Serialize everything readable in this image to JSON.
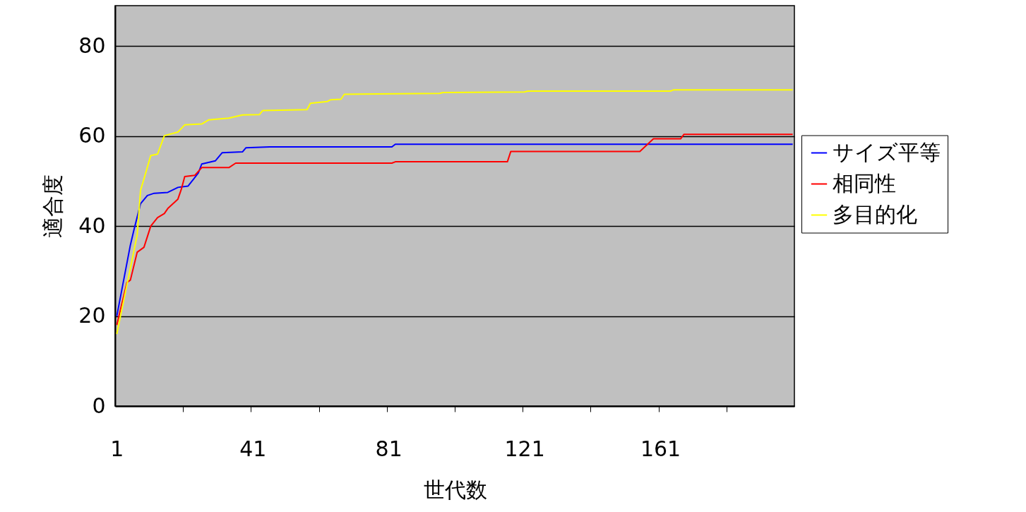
{
  "chart_data": {
    "type": "line",
    "xlabel": "世代数",
    "ylabel": "適合度",
    "xlim": [
      0.5,
      200.5
    ],
    "ylim": [
      0,
      89
    ],
    "xticks": [
      1,
      {
        "value": 20.5,
        "label": null
      },
      {
        "value": 40.5,
        "label": null
      },
      41,
      {
        "value": 60.5,
        "label": null
      },
      {
        "value": 80.5,
        "label": null
      },
      81,
      {
        "value": 100.5,
        "label": null
      },
      {
        "value": 120.5,
        "label": null
      },
      121,
      {
        "value": 140.5,
        "label": null
      },
      {
        "value": 160.5,
        "label": null
      },
      161,
      {
        "value": 180.5,
        "label": null
      }
    ],
    "yticks": [
      0,
      20,
      40,
      60,
      80
    ],
    "grid": "y",
    "legend": "right",
    "series": [
      {
        "name": "サイズ平等",
        "color": "#0000ff",
        "x": [
          1,
          5,
          6,
          8,
          10,
          12,
          16,
          19,
          22,
          25,
          26,
          30,
          32,
          38,
          39,
          46,
          82,
          83,
          200
        ],
        "values": [
          20,
          35.8,
          39,
          45,
          46.8,
          47.3,
          47.5,
          48.6,
          48.9,
          51.8,
          53.8,
          54.5,
          56.3,
          56.5,
          57.4,
          57.6,
          57.6,
          58.2,
          58.2
        ]
      },
      {
        "name": "相同性",
        "color": "#ff0000",
        "x": [
          1,
          4,
          5,
          7,
          9,
          11,
          13,
          15,
          16,
          19,
          20,
          21,
          24,
          26,
          34,
          36,
          82,
          83,
          116,
          117,
          155,
          159,
          167,
          168,
          200
        ],
        "values": [
          18,
          27.5,
          28,
          34.2,
          35.3,
          40,
          41.9,
          42.8,
          43.9,
          46,
          48.2,
          51,
          51.3,
          53,
          53,
          54,
          54,
          54.3,
          54.3,
          56.6,
          56.6,
          59.4,
          59.4,
          60.4,
          60.4
        ]
      },
      {
        "name": "多目的化",
        "color": "#ffff00",
        "x": [
          1,
          7,
          8,
          9,
          11,
          13,
          15,
          19,
          21,
          26,
          28,
          34,
          38,
          43,
          44,
          57,
          58,
          63,
          64,
          67,
          68,
          96,
          97,
          121,
          122,
          164,
          165,
          200
        ],
        "values": [
          16,
          38,
          48,
          50.5,
          55.7,
          56,
          60.1,
          60.9,
          62.5,
          62.7,
          63.6,
          64,
          64.7,
          64.8,
          65.7,
          65.9,
          67.3,
          67.7,
          68.1,
          68.2,
          69.3,
          69.5,
          69.7,
          69.8,
          70,
          70,
          70.3,
          70.3
        ]
      }
    ]
  }
}
